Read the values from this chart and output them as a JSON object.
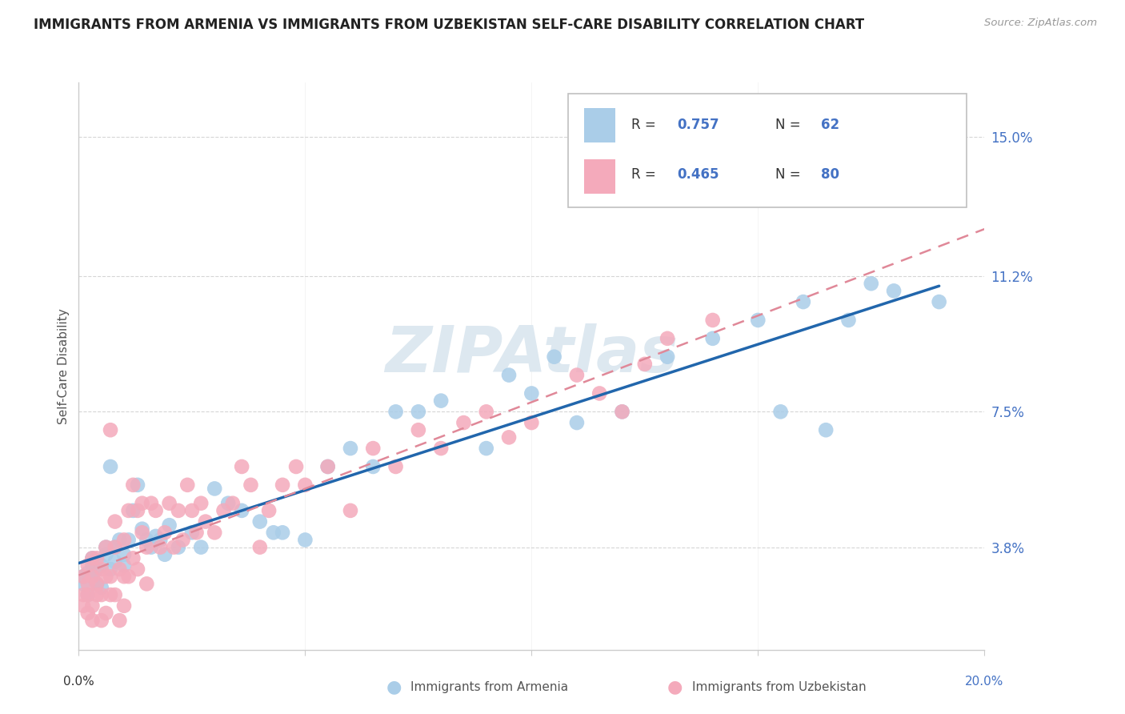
{
  "title": "IMMIGRANTS FROM ARMENIA VS IMMIGRANTS FROM UZBEKISTAN SELF-CARE DISABILITY CORRELATION CHART",
  "source": "Source: ZipAtlas.com",
  "ylabel": "Self-Care Disability",
  "ytick_vals": [
    0.038,
    0.075,
    0.112,
    0.15
  ],
  "ytick_labels": [
    "3.8%",
    "7.5%",
    "11.2%",
    "15.0%"
  ],
  "xmin": 0.0,
  "xmax": 0.2,
  "ymin": 0.01,
  "ymax": 0.165,
  "armenia_R": 0.757,
  "armenia_N": 62,
  "uzbekistan_R": 0.465,
  "uzbekistan_N": 80,
  "armenia_color": "#aacde8",
  "uzbekistan_color": "#f4aabb",
  "armenia_line_color": "#2166ac",
  "uzbekistan_line_color": "#e08898",
  "watermark_text": "ZIPAtlas",
  "watermark_color": "#dde8f0",
  "legend_label_armenia": "Immigrants from Armenia",
  "legend_label_uzbekistan": "Immigrants from Uzbekistan",
  "background_color": "#ffffff",
  "grid_color": "#cccccc",
  "title_color": "#222222",
  "ylabel_color": "#555555",
  "yticklabel_color": "#4472c4",
  "source_color": "#999999",
  "label_blue_color": "#4472c4",
  "label_black_color": "#333333"
}
